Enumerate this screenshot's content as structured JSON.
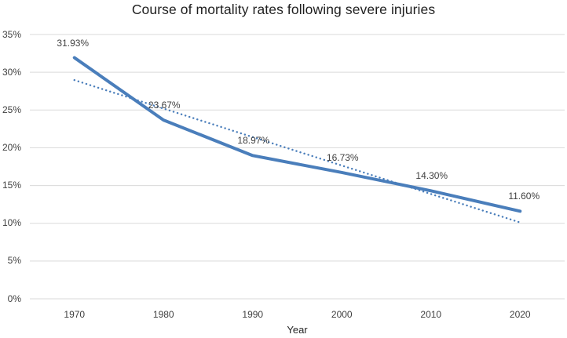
{
  "chart_data": {
    "type": "line",
    "title": "Course of mortality rates following severe injuries",
    "xlabel": "Year",
    "ylabel": "",
    "categories": [
      "1970",
      "1980",
      "1990",
      "2000",
      "2010",
      "2020"
    ],
    "series": [
      {
        "name": "mortality-rate",
        "values": [
          31.93,
          23.67,
          18.97,
          16.73,
          14.3,
          11.6
        ],
        "data_labels": [
          "31.93%",
          "23.67%",
          "18.97%",
          "16.73%",
          "14.30%",
          "11.60%"
        ],
        "style": "solid",
        "stroke_width": 4,
        "color": "#4a7ebb"
      },
      {
        "name": "linear-trendline",
        "values": [
          28.96,
          25.19,
          21.42,
          17.65,
          13.88,
          10.11
        ],
        "data_labels": [],
        "style": "dotted",
        "stroke_width": 2.4,
        "color": "#4a7ebb"
      }
    ],
    "ylim": [
      0,
      35
    ],
    "yticks": [
      0,
      5,
      10,
      15,
      20,
      25,
      30,
      35
    ],
    "ytick_labels": [
      "0%",
      "5%",
      "10%",
      "15%",
      "20%",
      "25%",
      "30%",
      "35%"
    ],
    "grid": "horizontal-only",
    "legend": "none",
    "colors": {
      "line": "#4a7ebb",
      "gridline": "#d9d9d9",
      "tick_text": "#404040",
      "data_label_text": "#404040",
      "title_text": "#1f1f1f",
      "background": "#ffffff"
    }
  }
}
